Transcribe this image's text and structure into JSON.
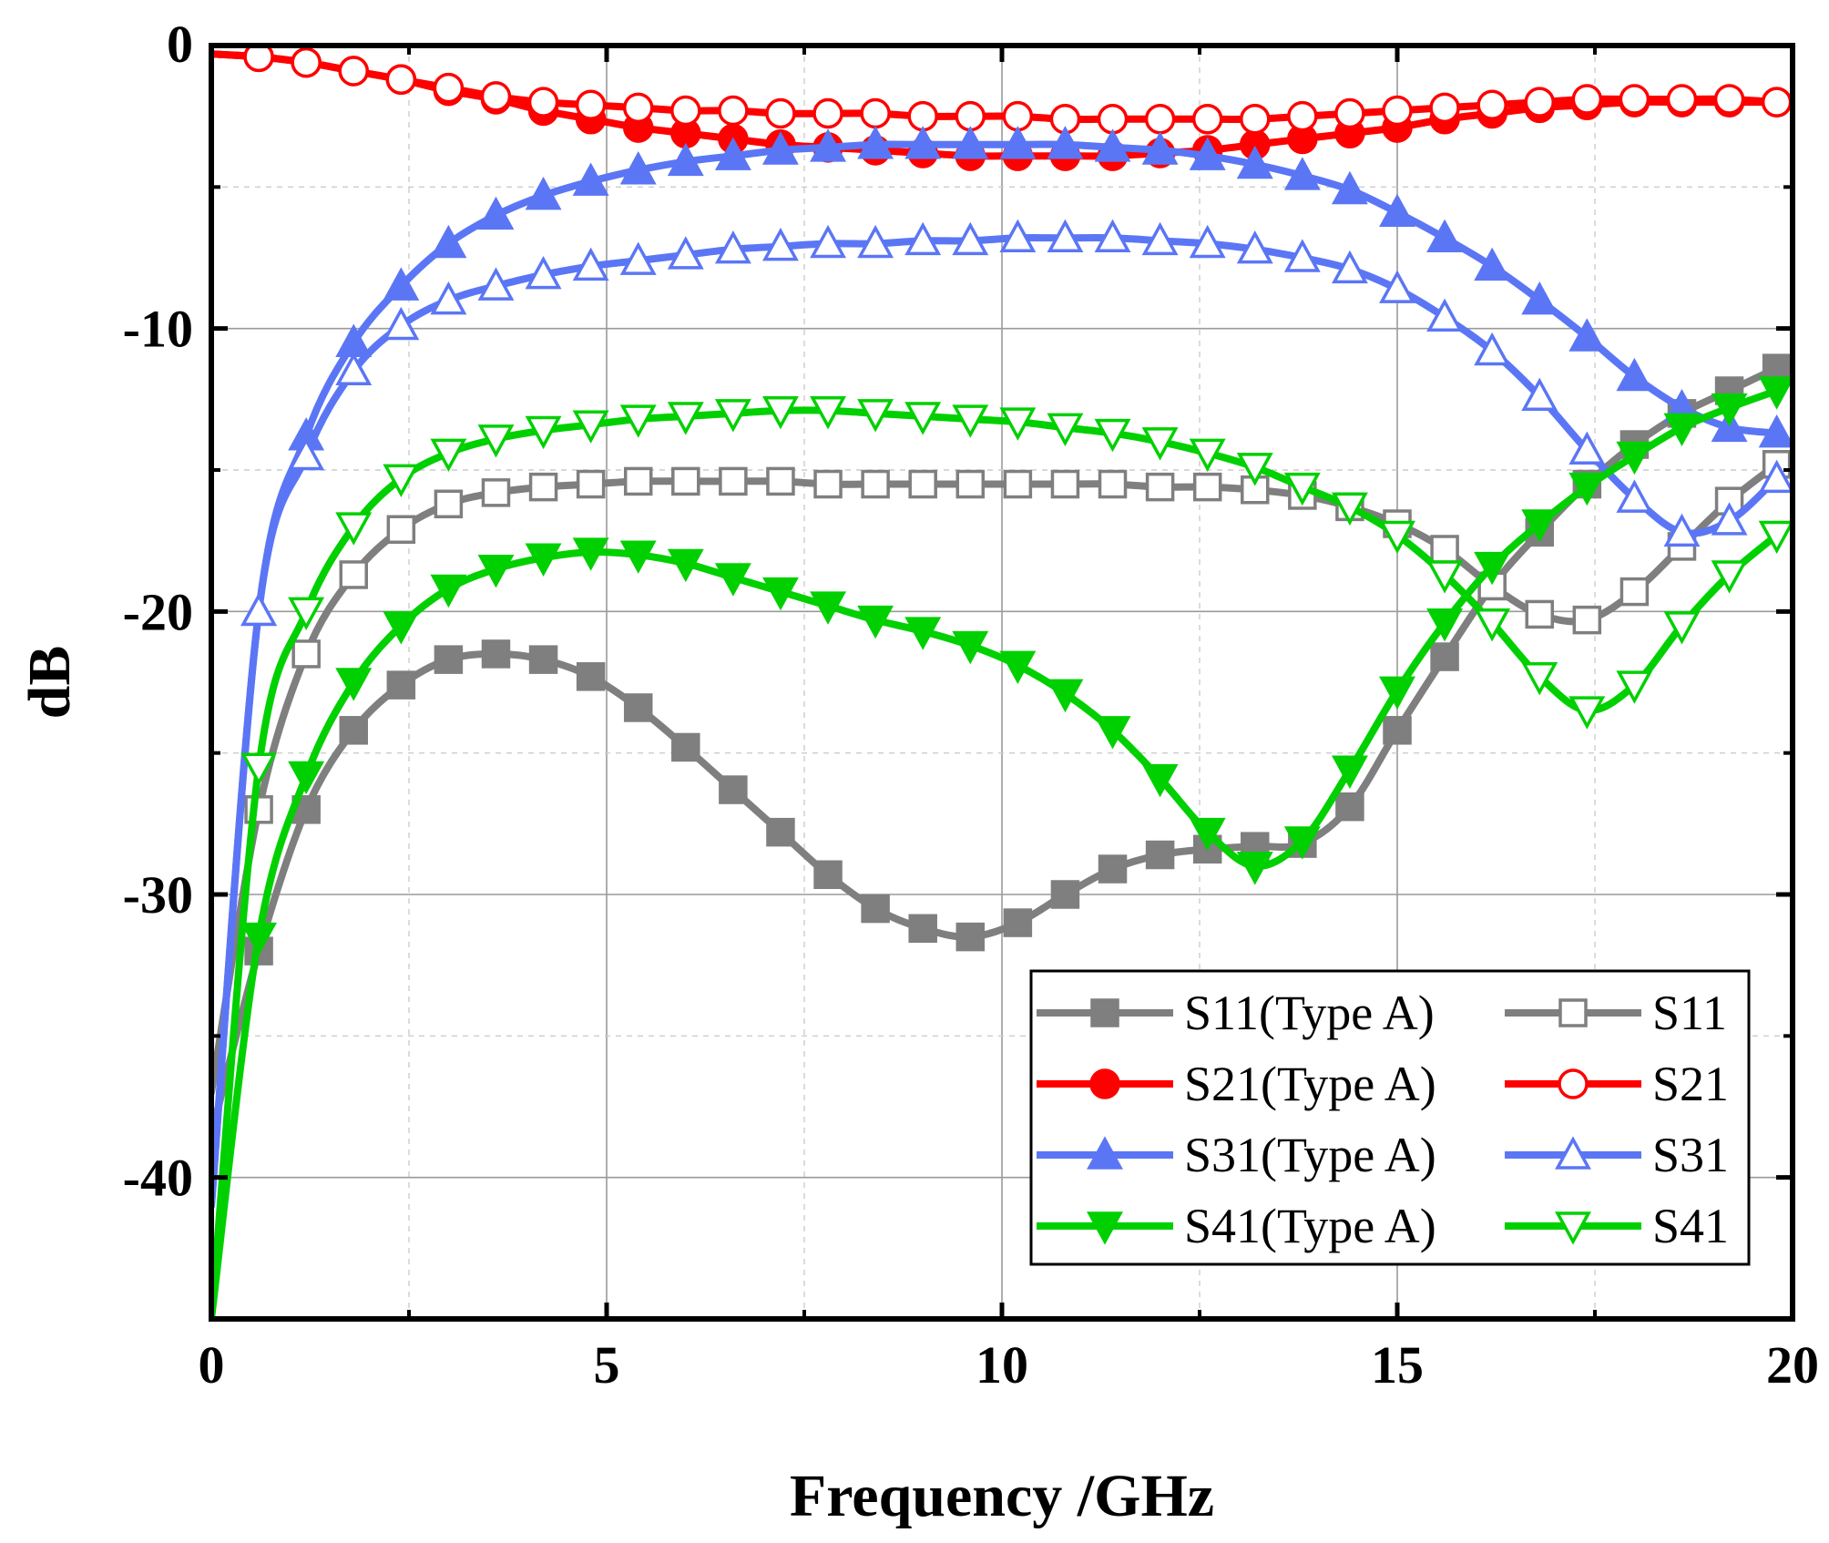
{
  "chart_data": {
    "type": "line",
    "title": "",
    "xlabel": "Frequency /GHz",
    "ylabel": "dB",
    "xlim": [
      0,
      20
    ],
    "ylim": [
      -45,
      0
    ],
    "xticks": [
      0,
      5,
      10,
      15,
      20
    ],
    "yticks": [
      0,
      -10,
      -20,
      -30,
      -40
    ],
    "xtick_labels": [
      "0",
      "5",
      "10",
      "15",
      "20"
    ],
    "ytick_labels": [
      "0",
      "-10",
      "-20",
      "-30",
      "-40"
    ],
    "grid": true,
    "legend_position": "bottom-right",
    "series": [
      {
        "name": "S11(Type A)",
        "color": "#7f7f7f",
        "marker": "square-filled",
        "x": [
          0,
          0.6,
          1.2,
          1.8,
          2.4,
          3.0,
          3.6,
          4.2,
          4.8,
          5.4,
          6.0,
          6.6,
          7.2,
          7.8,
          8.4,
          9.0,
          9.6,
          10.2,
          10.8,
          11.4,
          12.0,
          12.6,
          13.2,
          13.8,
          14.4,
          15.0,
          15.6,
          16.2,
          16.8,
          17.4,
          18.0,
          18.6,
          19.2,
          19.8
        ],
        "y": [
          -38.5,
          -32.0,
          -27.0,
          -24.2,
          -22.6,
          -21.7,
          -21.5,
          -21.7,
          -22.3,
          -23.4,
          -24.8,
          -26.3,
          -27.8,
          -29.3,
          -30.5,
          -31.2,
          -31.5,
          -31.0,
          -30.0,
          -29.1,
          -28.6,
          -28.4,
          -28.3,
          -28.2,
          -26.9,
          -24.2,
          -21.6,
          -19.1,
          -17.2,
          -15.5,
          -14.1,
          -13.0,
          -12.2,
          -11.4
        ]
      },
      {
        "name": "S11",
        "color": "#7f7f7f",
        "marker": "square-open",
        "x": [
          0,
          0.6,
          1.2,
          1.8,
          2.4,
          3.0,
          3.6,
          4.2,
          4.8,
          5.4,
          6.0,
          6.6,
          7.2,
          7.8,
          8.4,
          9.0,
          9.6,
          10.2,
          10.8,
          11.4,
          12.0,
          12.6,
          13.2,
          13.8,
          14.4,
          15.0,
          15.6,
          16.2,
          16.8,
          17.4,
          18.0,
          18.6,
          19.2,
          19.8
        ],
        "y": [
          -37.0,
          -27.0,
          -21.5,
          -18.7,
          -17.1,
          -16.2,
          -15.8,
          -15.6,
          -15.5,
          -15.4,
          -15.4,
          -15.4,
          -15.4,
          -15.5,
          -15.5,
          -15.5,
          -15.5,
          -15.5,
          -15.5,
          -15.5,
          -15.6,
          -15.6,
          -15.7,
          -15.9,
          -16.3,
          -16.9,
          -17.8,
          -19.1,
          -20.1,
          -20.3,
          -19.3,
          -17.7,
          -16.1,
          -14.8
        ]
      },
      {
        "name": "S21(Type A)",
        "color": "#ff0000",
        "marker": "circle-filled",
        "x": [
          0,
          0.6,
          1.2,
          1.8,
          2.4,
          3.0,
          3.6,
          4.2,
          4.8,
          5.4,
          6.0,
          6.6,
          7.2,
          7.8,
          8.4,
          9.0,
          9.6,
          10.2,
          10.8,
          11.4,
          12.0,
          12.6,
          13.2,
          13.8,
          14.4,
          15.0,
          15.6,
          16.2,
          16.8,
          17.4,
          18.0,
          18.6,
          19.2,
          19.8
        ],
        "y": [
          -0.3,
          -0.4,
          -0.6,
          -0.9,
          -1.2,
          -1.6,
          -1.9,
          -2.3,
          -2.6,
          -2.9,
          -3.1,
          -3.3,
          -3.5,
          -3.6,
          -3.7,
          -3.8,
          -3.9,
          -3.9,
          -3.9,
          -3.9,
          -3.8,
          -3.7,
          -3.5,
          -3.3,
          -3.1,
          -2.9,
          -2.6,
          -2.4,
          -2.2,
          -2.1,
          -2.0,
          -2.0,
          -2.0,
          -2.0
        ]
      },
      {
        "name": "S21",
        "color": "#ff0000",
        "marker": "circle-open",
        "x": [
          0,
          0.6,
          1.2,
          1.8,
          2.4,
          3.0,
          3.6,
          4.2,
          4.8,
          5.4,
          6.0,
          6.6,
          7.2,
          7.8,
          8.4,
          9.0,
          9.6,
          10.2,
          10.8,
          11.4,
          12.0,
          12.6,
          13.2,
          13.8,
          14.4,
          15.0,
          15.6,
          16.2,
          16.8,
          17.4,
          18.0,
          18.6,
          19.2,
          19.8
        ],
        "y": [
          -0.3,
          -0.4,
          -0.6,
          -0.9,
          -1.2,
          -1.5,
          -1.8,
          -2.0,
          -2.1,
          -2.2,
          -2.3,
          -2.3,
          -2.4,
          -2.4,
          -2.4,
          -2.5,
          -2.5,
          -2.5,
          -2.6,
          -2.6,
          -2.6,
          -2.6,
          -2.6,
          -2.5,
          -2.4,
          -2.3,
          -2.2,
          -2.1,
          -2.0,
          -1.9,
          -1.9,
          -1.9,
          -1.9,
          -2.0
        ]
      },
      {
        "name": "S31(Type A)",
        "color": "#5b76f5",
        "marker": "triangle-up-filled",
        "x": [
          0,
          0.6,
          1.2,
          1.8,
          2.4,
          3.0,
          3.6,
          4.2,
          4.8,
          5.4,
          6.0,
          6.6,
          7.2,
          7.8,
          8.4,
          9.0,
          9.6,
          10.2,
          10.8,
          11.4,
          12.0,
          12.6,
          13.2,
          13.8,
          14.4,
          15.0,
          15.6,
          16.2,
          16.8,
          17.4,
          18.0,
          18.6,
          19.2,
          19.8
        ],
        "y": [
          -41.0,
          -20.0,
          -13.8,
          -10.5,
          -8.5,
          -7.0,
          -6.0,
          -5.3,
          -4.8,
          -4.4,
          -4.1,
          -3.9,
          -3.7,
          -3.6,
          -3.5,
          -3.5,
          -3.5,
          -3.5,
          -3.5,
          -3.6,
          -3.7,
          -3.9,
          -4.2,
          -4.6,
          -5.1,
          -5.9,
          -6.8,
          -7.8,
          -9.0,
          -10.3,
          -11.7,
          -12.8,
          -13.5,
          -13.7
        ]
      },
      {
        "name": "S31",
        "color": "#5b76f5",
        "marker": "triangle-up-open",
        "x": [
          0,
          0.6,
          1.2,
          1.8,
          2.4,
          3.0,
          3.6,
          4.2,
          4.8,
          5.4,
          6.0,
          6.6,
          7.2,
          7.8,
          8.4,
          9.0,
          9.6,
          10.2,
          10.8,
          11.4,
          12.0,
          12.6,
          13.2,
          13.8,
          14.4,
          15.0,
          15.6,
          16.2,
          16.8,
          17.4,
          18.0,
          18.6,
          19.2,
          19.8
        ],
        "y": [
          -41.0,
          -20.0,
          -14.5,
          -11.5,
          -9.9,
          -9.0,
          -8.5,
          -8.1,
          -7.8,
          -7.6,
          -7.4,
          -7.2,
          -7.1,
          -7.0,
          -7.0,
          -6.9,
          -6.9,
          -6.8,
          -6.8,
          -6.8,
          -6.9,
          -7.0,
          -7.2,
          -7.5,
          -7.9,
          -8.6,
          -9.6,
          -10.8,
          -12.4,
          -14.3,
          -16.0,
          -17.2,
          -16.8,
          -15.3
        ]
      },
      {
        "name": "S41(Type A)",
        "color": "#00d000",
        "marker": "triangle-down-filled",
        "x": [
          0,
          0.6,
          1.2,
          1.8,
          2.4,
          3.0,
          3.6,
          4.2,
          4.8,
          5.4,
          6.0,
          6.6,
          7.2,
          7.8,
          8.4,
          9.0,
          9.6,
          10.2,
          10.8,
          11.4,
          12.0,
          12.6,
          13.2,
          13.8,
          14.4,
          15.0,
          15.6,
          16.2,
          16.8,
          17.4,
          18.0,
          18.6,
          19.2,
          19.8
        ],
        "y": [
          -45.0,
          -31.5,
          -25.8,
          -22.5,
          -20.5,
          -19.2,
          -18.5,
          -18.1,
          -17.9,
          -18.0,
          -18.3,
          -18.8,
          -19.3,
          -19.8,
          -20.3,
          -20.7,
          -21.2,
          -21.9,
          -22.9,
          -24.2,
          -25.9,
          -27.8,
          -29.0,
          -28.1,
          -25.6,
          -22.8,
          -20.4,
          -18.4,
          -16.9,
          -15.6,
          -14.5,
          -13.5,
          -12.8,
          -12.2
        ]
      },
      {
        "name": "S41",
        "color": "#00d000",
        "marker": "triangle-down-open",
        "x": [
          0,
          0.6,
          1.2,
          1.8,
          2.4,
          3.0,
          3.6,
          4.2,
          4.8,
          5.4,
          6.0,
          6.6,
          7.2,
          7.8,
          8.4,
          9.0,
          9.6,
          10.2,
          10.8,
          11.4,
          12.0,
          12.6,
          13.2,
          13.8,
          14.4,
          15.0,
          15.6,
          16.2,
          16.8,
          17.4,
          18.0,
          18.6,
          19.2,
          19.8
        ],
        "y": [
          -45.0,
          -25.5,
          -20.0,
          -17.0,
          -15.3,
          -14.4,
          -13.9,
          -13.6,
          -13.4,
          -13.2,
          -13.1,
          -13.0,
          -12.9,
          -12.9,
          -13.0,
          -13.1,
          -13.2,
          -13.3,
          -13.5,
          -13.7,
          -14.0,
          -14.4,
          -14.9,
          -15.6,
          -16.3,
          -17.3,
          -18.7,
          -20.4,
          -22.3,
          -23.5,
          -22.6,
          -20.5,
          -18.7,
          -17.3
        ]
      }
    ],
    "legend": [
      [
        "S11(Type A)",
        "S11"
      ],
      [
        "S21(Type A)",
        "S21"
      ],
      [
        "S31(Type A)",
        "S31"
      ],
      [
        "S41(Type A)",
        "S41"
      ]
    ]
  }
}
